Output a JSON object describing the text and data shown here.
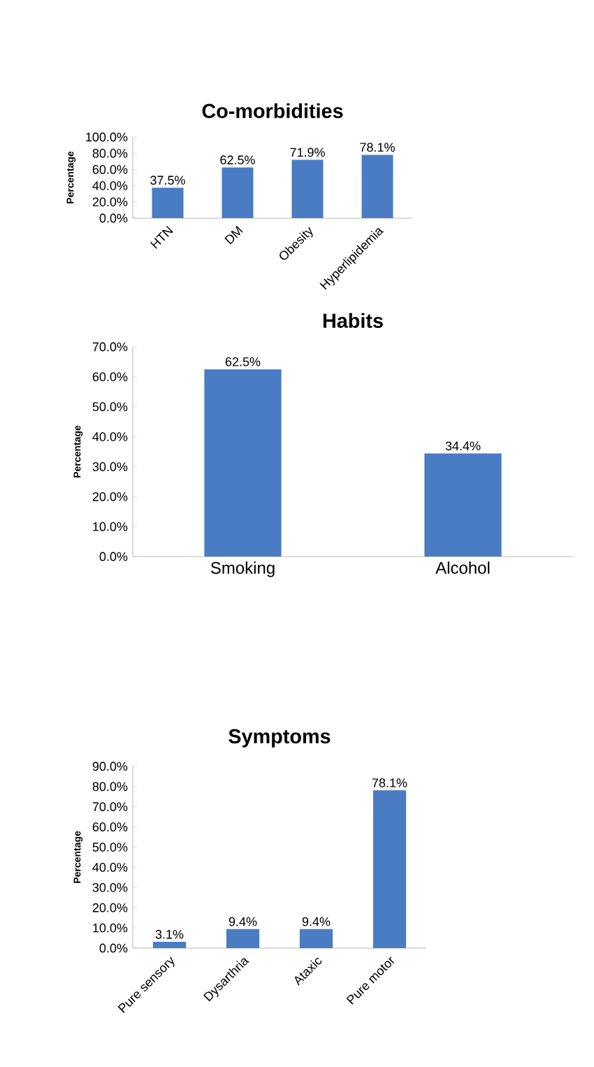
{
  "chart_data": [
    {
      "type": "bar",
      "title": "Co-morbidities",
      "ylabel": "Percentage",
      "categories": [
        "HTN",
        "DM",
        "Obesity",
        "Hyperlipidemia"
      ],
      "values": [
        37.5,
        62.5,
        71.9,
        78.1
      ],
      "value_labels": [
        "37.5%",
        "62.5%",
        "71.9%",
        "78.1%"
      ],
      "color": "#4a7cc4",
      "ylim": [
        0,
        100
      ],
      "yticks": [
        {
          "value": 0,
          "label": "0.0%"
        },
        {
          "value": 20,
          "label": "20.0%"
        },
        {
          "value": 40,
          "label": "40.0%"
        },
        {
          "value": 60,
          "label": "60.0%"
        },
        {
          "value": 80,
          "label": "80.0%"
        },
        {
          "value": 100,
          "label": "100.0%"
        }
      ]
    },
    {
      "type": "bar",
      "title": "Habits",
      "ylabel": "Percentage",
      "categories": [
        "Smoking",
        "Alcohol"
      ],
      "values": [
        62.5,
        34.4
      ],
      "value_labels": [
        "62.5%",
        "34.4%"
      ],
      "color": "#4a7cc4",
      "ylim": [
        0,
        70
      ],
      "yticks": [
        {
          "value": 0,
          "label": "0.0%"
        },
        {
          "value": 10,
          "label": "10.0%"
        },
        {
          "value": 20,
          "label": "20.0%"
        },
        {
          "value": 30,
          "label": "30.0%"
        },
        {
          "value": 40,
          "label": "40.0%"
        },
        {
          "value": 50,
          "label": "50.0%"
        },
        {
          "value": 60,
          "label": "60.0%"
        },
        {
          "value": 70,
          "label": "70.0%"
        }
      ]
    },
    {
      "type": "bar",
      "title": "Symptoms",
      "ylabel": "Percentage",
      "categories": [
        "Pure sensory",
        "Dysarthria",
        "Ataxic",
        "Pure motor"
      ],
      "values": [
        3.1,
        9.4,
        9.4,
        78.1
      ],
      "value_labels": [
        "3.1%",
        "9.4%",
        "9.4%",
        "78.1%"
      ],
      "color": "#4a7cc4",
      "ylim": [
        0,
        90
      ],
      "yticks": [
        {
          "value": 0,
          "label": "0.0%"
        },
        {
          "value": 10,
          "label": "10.0%"
        },
        {
          "value": 20,
          "label": "20.0%"
        },
        {
          "value": 30,
          "label": "30.0%"
        },
        {
          "value": 40,
          "label": "40.0%"
        },
        {
          "value": 50,
          "label": "50.0%"
        },
        {
          "value": 60,
          "label": "60.0%"
        },
        {
          "value": 70,
          "label": "70.0%"
        },
        {
          "value": 80,
          "label": "80.0%"
        },
        {
          "value": 90,
          "label": "90.0%"
        }
      ]
    }
  ]
}
